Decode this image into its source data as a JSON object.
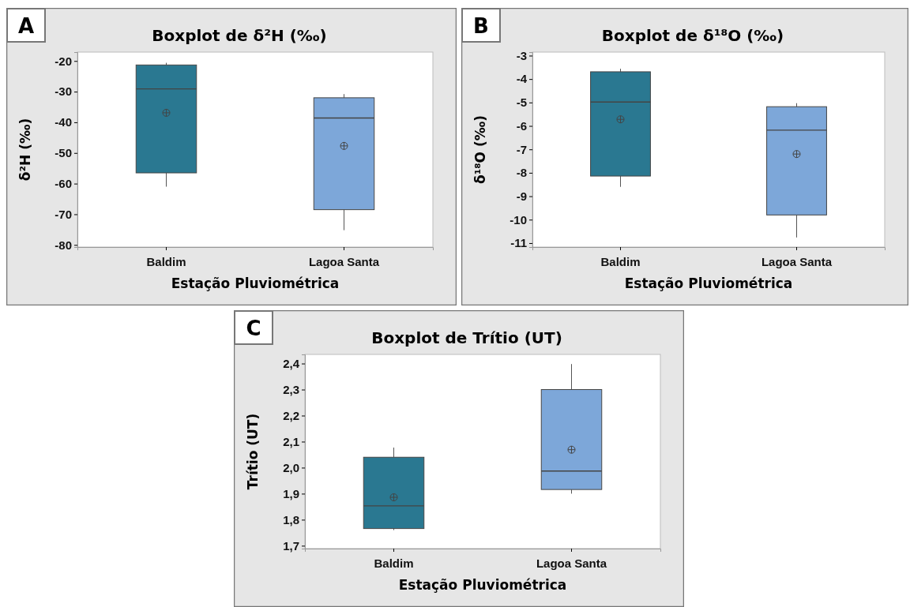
{
  "chart_data": [
    {
      "type": "box",
      "title": "Boxplot de δ²H (‰)",
      "xlabel": "Estação Pluviométrica",
      "ylabel": "δ²H (‰)",
      "annotations": [
        "A"
      ],
      "categories": [
        "Baldim",
        "Lagoa Santa"
      ],
      "colors": [
        "#2a7891",
        "#7da7d9"
      ],
      "boxes": [
        {
          "low": -61.0,
          "q1": -56.5,
          "median": -29.1,
          "q3": -21.3,
          "high": -20.6,
          "mean": -36.9
        },
        {
          "low": -75.2,
          "q1": -68.5,
          "median": -38.6,
          "q3": -32.0,
          "high": -30.8,
          "mean": -47.7
        }
      ],
      "ylim": [
        -80.7,
        -17.1
      ],
      "yticks": [
        -80,
        -70,
        -60,
        -50,
        -40,
        -30,
        -20
      ]
    },
    {
      "type": "box",
      "title": "Boxplot de δ¹⁸O (‰)",
      "xlabel": "Estação Pluviométrica",
      "ylabel": "δ¹⁸O (‰)",
      "annotations": [
        "B"
      ],
      "categories": [
        "Baldim",
        "Lagoa Santa"
      ],
      "colors": [
        "#2a7891",
        "#7da7d9"
      ],
      "boxes": [
        {
          "low": -8.6,
          "q1": -8.14,
          "median": -4.98,
          "q3": -3.69,
          "high": -3.56,
          "mean": -5.72
        },
        {
          "low": -10.76,
          "q1": -9.8,
          "median": -6.18,
          "q3": -5.18,
          "high": -5.03,
          "mean": -7.2
        }
      ],
      "ylim": [
        -11.17,
        -2.85
      ],
      "yticks": [
        -11,
        -10,
        -9,
        -8,
        -7,
        -6,
        -5,
        -4,
        -3
      ]
    },
    {
      "type": "box",
      "title": "Boxplot de Trítio (UT)",
      "xlabel": "Estação Pluviométrica",
      "ylabel": "Trítio (UT)",
      "annotations": [
        "C"
      ],
      "categories": [
        "Baldim",
        "Lagoa Santa"
      ],
      "colors": [
        "#2a7891",
        "#7da7d9"
      ],
      "boxes": [
        {
          "low": 1.76,
          "q1": 1.766,
          "median": 1.853,
          "q3": 2.04,
          "high": 2.077,
          "mean": 1.886
        },
        {
          "low": 1.9,
          "q1": 1.916,
          "median": 1.987,
          "q3": 2.3,
          "high": 2.398,
          "mean": 2.069
        }
      ],
      "ylim": [
        1.689,
        2.435
      ],
      "yticks": [
        {
          "value": 1.7,
          "label": "1,7"
        },
        {
          "value": 1.8,
          "label": "1,8"
        },
        {
          "value": 1.9,
          "label": "1,9"
        },
        {
          "value": 2.0,
          "label": "2,0"
        },
        {
          "value": 2.1,
          "label": "2,1"
        },
        {
          "value": 2.2,
          "label": "2,2"
        },
        {
          "value": 2.3,
          "label": "2,3"
        },
        {
          "value": 2.4,
          "label": "2,4"
        }
      ]
    }
  ]
}
